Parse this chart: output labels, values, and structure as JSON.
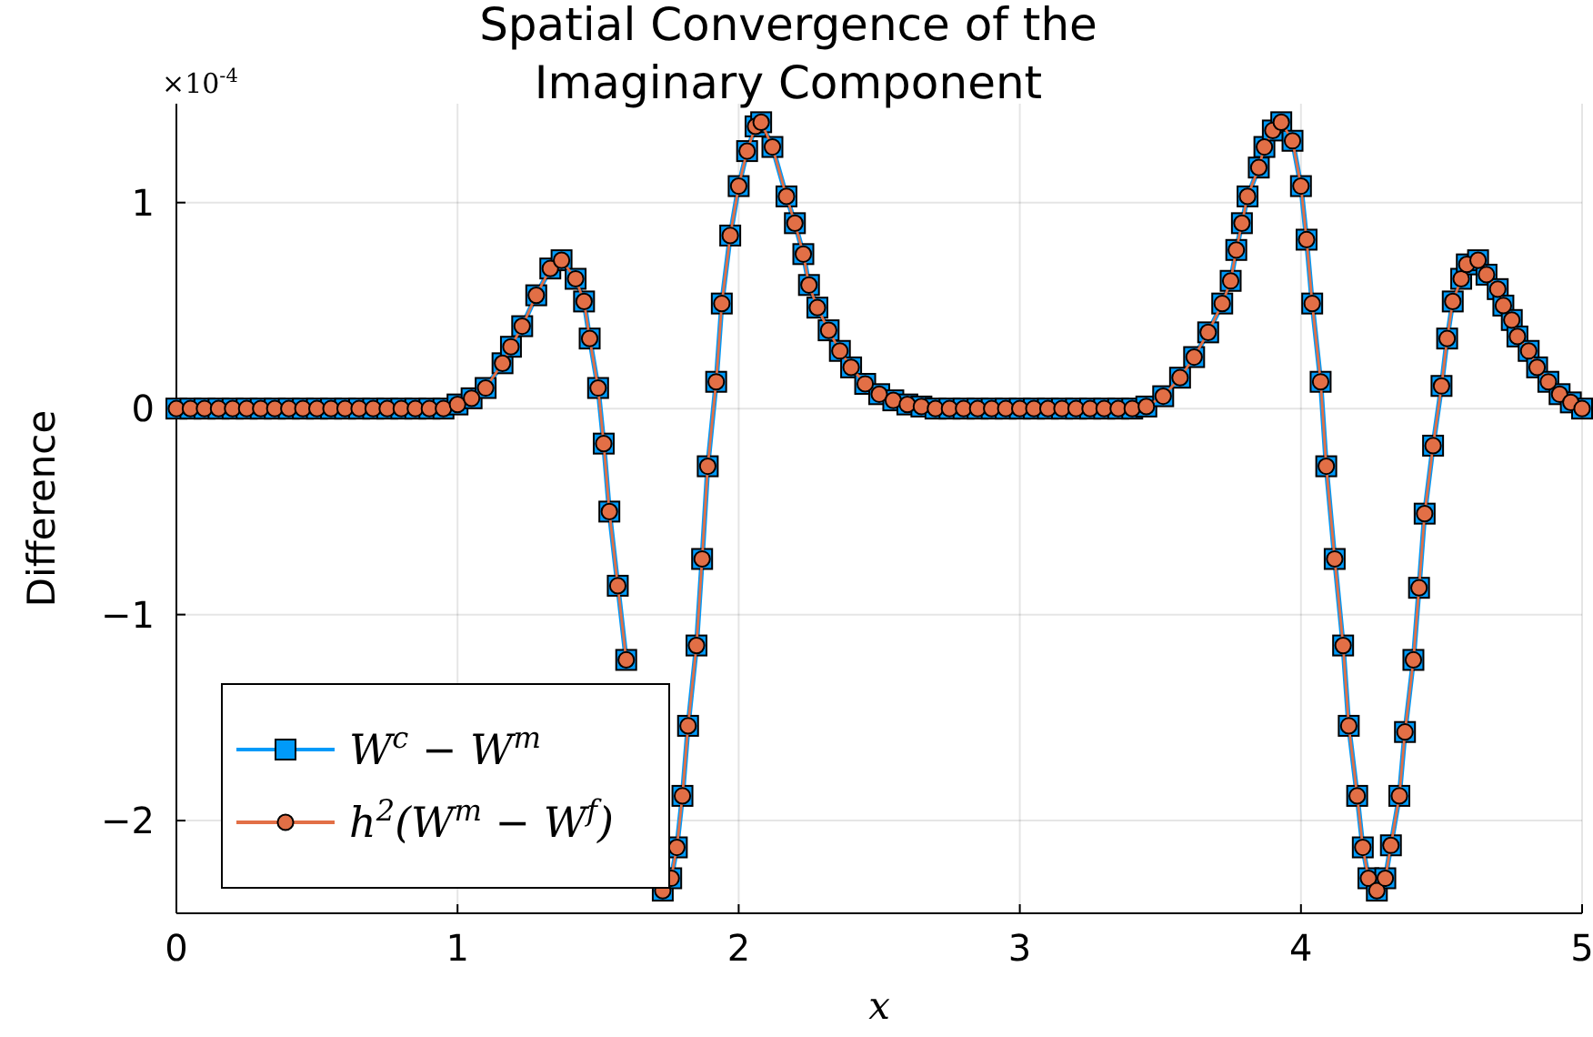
{
  "chart_data": {
    "type": "line",
    "title": "Spatial Convergence of the Imaginary Component",
    "xlabel": "x",
    "ylabel": "Difference",
    "annotations": [
      "×10$^{-4}$"
    ],
    "x": [
      0,
      0.05,
      0.1,
      0.15,
      0.2,
      0.25,
      0.3,
      0.35,
      0.4,
      0.45,
      0.5,
      0.55,
      0.6,
      0.65,
      0.7,
      0.75,
      0.8,
      0.85,
      0.9,
      0.95,
      1.0,
      1.05,
      1.1,
      1.16,
      1.19,
      1.23,
      1.28,
      1.33,
      1.37,
      1.42,
      1.45,
      1.47,
      1.5,
      1.52,
      1.54,
      1.57,
      1.6,
      1.63,
      1.65,
      1.68,
      1.7,
      1.73,
      1.76,
      1.78,
      1.8,
      1.82,
      1.85,
      1.87,
      1.89,
      1.92,
      1.94,
      1.97,
      2.0,
      2.03,
      2.06,
      2.08,
      2.12,
      2.17,
      2.2,
      2.23,
      2.25,
      2.28,
      2.32,
      2.36,
      2.4,
      2.45,
      2.5,
      2.55,
      2.6,
      2.65,
      2.7,
      2.75,
      2.8,
      2.85,
      2.9,
      2.95,
      3.0,
      3.05,
      3.1,
      3.15,
      3.2,
      3.25,
      3.3,
      3.35,
      3.4,
      3.45,
      3.51,
      3.57,
      3.62,
      3.67,
      3.72,
      3.75,
      3.77,
      3.79,
      3.81,
      3.85,
      3.87,
      3.9,
      3.93,
      3.97,
      4.0,
      4.02,
      4.04,
      4.07,
      4.09,
      4.12,
      4.15,
      4.17,
      4.2,
      4.22,
      4.24,
      4.27,
      4.3,
      4.32,
      4.35,
      4.37,
      4.4,
      4.42,
      4.44,
      4.47,
      4.5,
      4.52,
      4.54,
      4.57,
      4.59,
      4.63,
      4.66,
      4.7,
      4.72,
      4.75,
      4.77,
      4.81,
      4.84,
      4.88,
      4.92,
      4.96,
      5.0
    ],
    "series": [
      {
        "name": "W$^{c}$ − W$^{m}$",
        "color": "#009af9",
        "marker": "square",
        "values": [
          0,
          0,
          0,
          0,
          0,
          0,
          0,
          0,
          0,
          0,
          0,
          0,
          0,
          0,
          0,
          0,
          0,
          0,
          0,
          0,
          0.02,
          0.05,
          0.1,
          0.22,
          0.3,
          0.4,
          0.55,
          0.68,
          0.72,
          0.63,
          0.52,
          0.34,
          0.1,
          -0.17,
          -0.5,
          -0.86,
          -1.22,
          null,
          null,
          null,
          null,
          -2.34,
          -2.28,
          -2.13,
          -1.88,
          -1.54,
          -1.15,
          -0.73,
          -0.28,
          0.13,
          0.51,
          0.84,
          1.08,
          1.25,
          1.37,
          1.39,
          1.27,
          1.03,
          0.9,
          0.75,
          0.6,
          0.49,
          0.38,
          0.28,
          0.2,
          0.12,
          0.07,
          0.04,
          0.02,
          0.01,
          0,
          0,
          0,
          0,
          0,
          0,
          0,
          0,
          0,
          0,
          0,
          0,
          0,
          0,
          0,
          0.01,
          0.06,
          0.15,
          0.25,
          0.37,
          0.51,
          0.62,
          0.77,
          0.9,
          1.03,
          1.17,
          1.27,
          1.35,
          1.39,
          1.3,
          1.08,
          0.82,
          0.51,
          0.13,
          -0.28,
          -0.73,
          -1.15,
          -1.54,
          -1.88,
          -2.13,
          -2.28,
          -2.34,
          -2.28,
          -2.12,
          -1.88,
          -1.57,
          -1.22,
          -0.87,
          -0.51,
          -0.18,
          0.11,
          0.34,
          0.52,
          0.63,
          0.7,
          0.72,
          0.65,
          0.58,
          0.5,
          0.43,
          0.35,
          0.28,
          0.2,
          0.13,
          0.07,
          0.03,
          0
        ]
      },
      {
        "name": "h$^{2}$(W$^{m}$ − W$^{f}$)",
        "color": "#e26f46",
        "marker": "circle",
        "values": [
          0,
          0,
          0,
          0,
          0,
          0,
          0,
          0,
          0,
          0,
          0,
          0,
          0,
          0,
          0,
          0,
          0,
          0,
          0,
          0,
          0.02,
          0.05,
          0.1,
          0.22,
          0.3,
          0.4,
          0.55,
          0.68,
          0.72,
          0.63,
          0.52,
          0.34,
          0.1,
          -0.17,
          -0.5,
          -0.86,
          -1.22,
          null,
          null,
          null,
          null,
          -2.34,
          -2.28,
          -2.13,
          -1.88,
          -1.54,
          -1.15,
          -0.73,
          -0.28,
          0.13,
          0.51,
          0.84,
          1.08,
          1.25,
          1.37,
          1.39,
          1.27,
          1.03,
          0.9,
          0.75,
          0.6,
          0.49,
          0.38,
          0.28,
          0.2,
          0.12,
          0.07,
          0.04,
          0.02,
          0.01,
          0,
          0,
          0,
          0,
          0,
          0,
          0,
          0,
          0,
          0,
          0,
          0,
          0,
          0,
          0,
          0.01,
          0.06,
          0.15,
          0.25,
          0.37,
          0.51,
          0.62,
          0.77,
          0.9,
          1.03,
          1.17,
          1.27,
          1.35,
          1.39,
          1.3,
          1.08,
          0.82,
          0.51,
          0.13,
          -0.28,
          -0.73,
          -1.15,
          -1.54,
          -1.88,
          -2.13,
          -2.28,
          -2.34,
          -2.28,
          -2.12,
          -1.88,
          -1.57,
          -1.22,
          -0.87,
          -0.51,
          -0.18,
          0.11,
          0.34,
          0.52,
          0.63,
          0.7,
          0.72,
          0.65,
          0.58,
          0.5,
          0.43,
          0.35,
          0.28,
          0.2,
          0.13,
          0.07,
          0.03,
          0
        ]
      }
    ],
    "xlim": [
      0,
      5
    ],
    "xticks": [
      0,
      1,
      2,
      3,
      4,
      5
    ],
    "ylim": [
      -2.45,
      1.48
    ],
    "yticks": [
      -2,
      -1,
      0,
      1
    ],
    "grid": true,
    "legend": "bottom left"
  }
}
